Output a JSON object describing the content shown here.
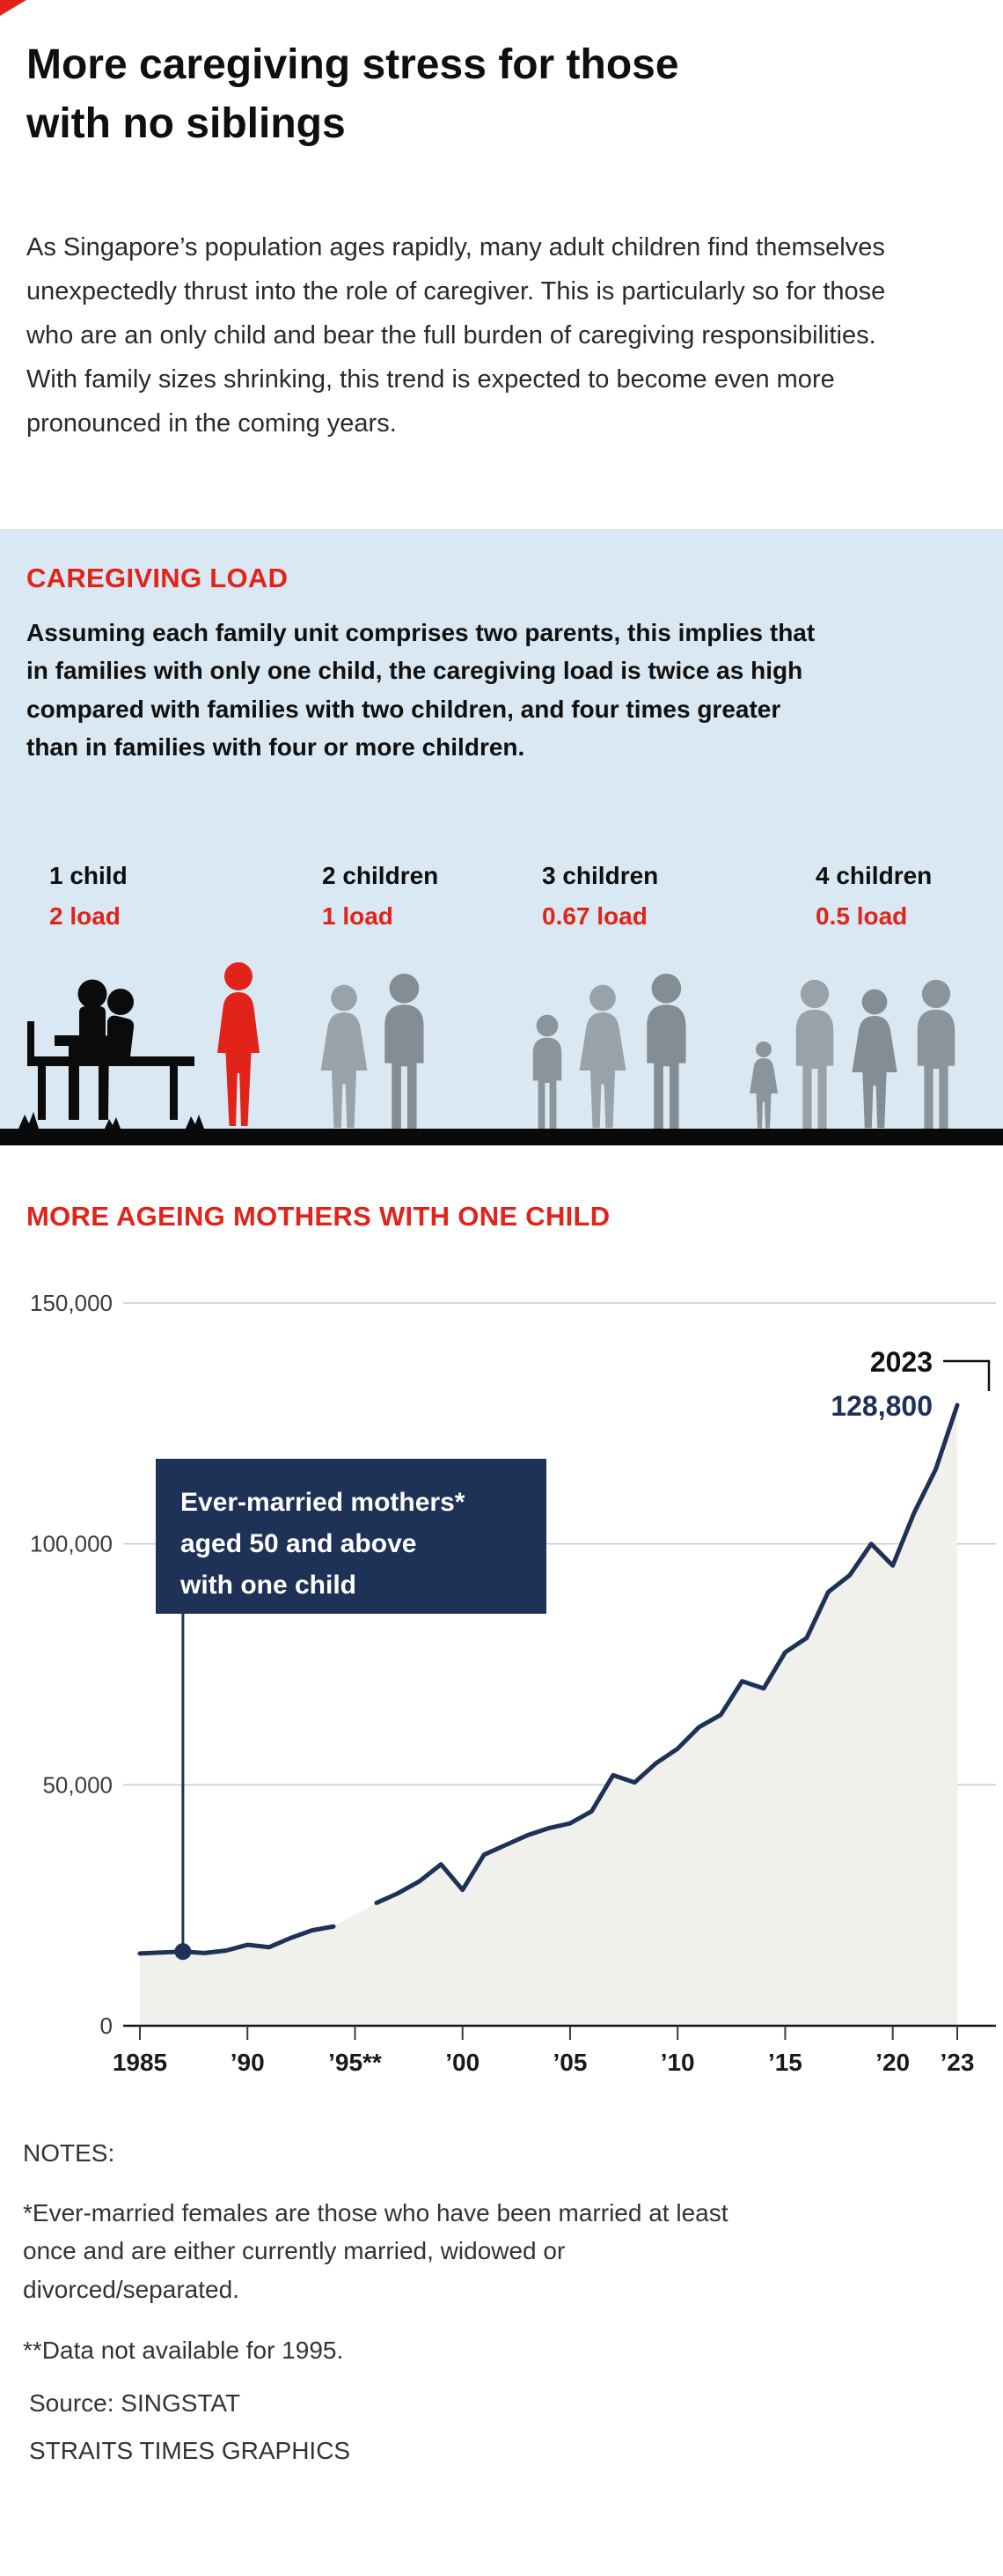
{
  "page": {
    "title_line1": "More caregiving stress for those",
    "title_line2": "with no siblings",
    "intro": "As Singapore’s population ages rapidly, many adult children find themselves unexpectedly thrust into the role of caregiver. This is particularly so for those who are an only child and bear the full burden of caregiving responsibilities. With family sizes shrinking, this trend is expected to become even more pronounced in the coming years."
  },
  "caregiving_load": {
    "heading": "CAREGIVING LOAD",
    "description": "Assuming each family unit comprises two parents, this implies that in families with only one child, the caregiving load is twice as high compared with families with two children, and four times greater than in families with four or more children.",
    "groups": [
      {
        "label": "1 child",
        "load": "2 load"
      },
      {
        "label": "2 children",
        "load": "1 load"
      },
      {
        "label": "3 children",
        "load": "0.67 load"
      },
      {
        "label": "4 children",
        "load": "0.5 load"
      }
    ],
    "colors": {
      "highlight_red": "#e2231a",
      "silhouette_gray": "#8b939b",
      "background_blue": "#d9e8f2"
    }
  },
  "chart": {
    "heading": "MORE AGEING MOTHERS WITH ONE CHILD",
    "callout": {
      "line1": "Ever-married mothers*",
      "line2": "aged 50 and above",
      "line3": "with one child"
    },
    "annotation_year": "2023",
    "annotation_value": "128,800"
  },
  "chart_data": {
    "type": "area",
    "title": "More ageing mothers with one child",
    "series_label": "Ever-married mothers aged 50 and above with one child",
    "ylim": [
      0,
      150000
    ],
    "grid": true,
    "line_color": "#1e3156",
    "area_color": "#f0f0ec",
    "x": [
      1985,
      1986,
      1987,
      1988,
      1989,
      1990,
      1991,
      1992,
      1993,
      1994,
      1995,
      1996,
      1997,
      1998,
      1999,
      2000,
      2001,
      2002,
      2003,
      2004,
      2005,
      2006,
      2007,
      2008,
      2009,
      2010,
      2011,
      2012,
      2013,
      2014,
      2015,
      2016,
      2017,
      2018,
      2019,
      2020,
      2021,
      2022,
      2023
    ],
    "values": [
      15000,
      15200,
      15400,
      15100,
      15600,
      16800,
      16300,
      18200,
      19800,
      20600,
      null,
      25500,
      27500,
      30000,
      33500,
      28200,
      35500,
      37500,
      39500,
      41000,
      42000,
      44500,
      52000,
      50500,
      54500,
      57500,
      62000,
      64500,
      71500,
      70000,
      77500,
      80500,
      90000,
      93500,
      100000,
      95500,
      106500,
      115500,
      128800
    ],
    "y_ticks": [
      {
        "value": 0,
        "label": "0"
      },
      {
        "value": 50000,
        "label": "50,000"
      },
      {
        "value": 100000,
        "label": "100,000"
      },
      {
        "value": 150000,
        "label": "150,000"
      }
    ],
    "x_ticks": [
      {
        "year": 1985,
        "label": "1985"
      },
      {
        "year": 1990,
        "label": "’90"
      },
      {
        "year": 1995,
        "label": "’95**"
      },
      {
        "year": 2000,
        "label": "’00"
      },
      {
        "year": 2005,
        "label": "’05"
      },
      {
        "year": 2010,
        "label": "’10"
      },
      {
        "year": 2015,
        "label": "’15"
      },
      {
        "year": 2020,
        "label": "’20"
      },
      {
        "year": 2023,
        "label": "’23"
      }
    ],
    "annotation": {
      "year": 2023,
      "value": 128800,
      "label": "128,800"
    },
    "callout_anchor": {
      "year": 1987,
      "value": 15400
    },
    "missing_data_note": "Data not available for 1995"
  },
  "notes": {
    "heading": "NOTES:",
    "note1": "*Ever-married females are those who have been married at least once and are either currently married, widowed or divorced/separated.",
    "note2": "**Data not available for 1995.",
    "source": "Source: SINGSTAT",
    "credit": "STRAITS TIMES GRAPHICS"
  }
}
